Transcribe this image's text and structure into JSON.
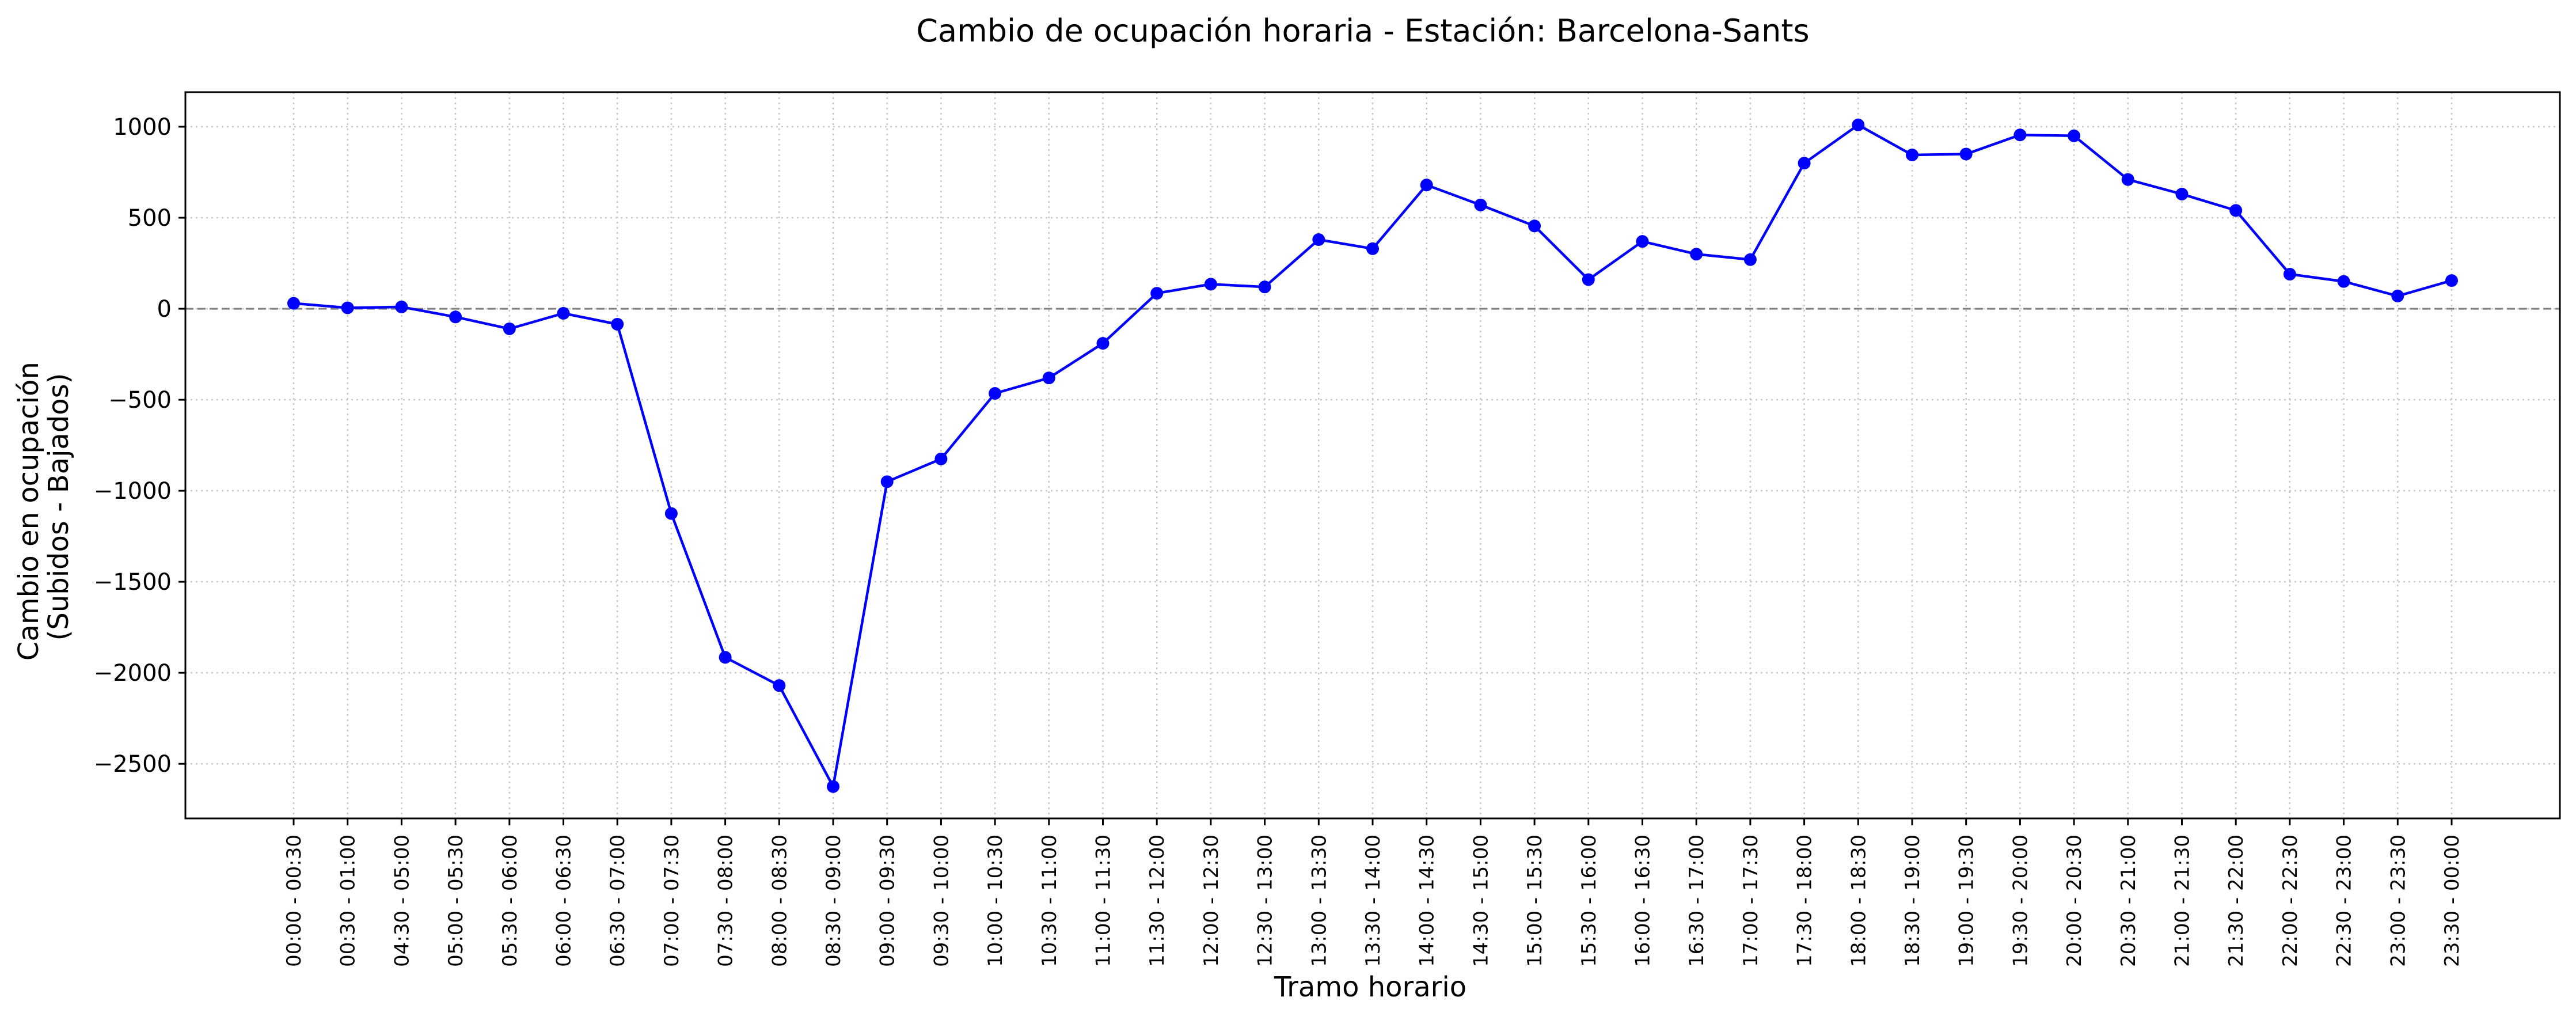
{
  "chart_data": {
    "type": "line",
    "title": "Cambio de ocupación horaria - Estación: Barcelona-Sants",
    "xlabel": "Tramo horario",
    "ylabel": [
      "Cambio en ocupación",
      "(Subidos - Bajados)"
    ],
    "categories": [
      "00:00 - 00:30",
      "00:30 - 01:00",
      "04:30 - 05:00",
      "05:00 - 05:30",
      "05:30 - 06:00",
      "06:00 - 06:30",
      "06:30 - 07:00",
      "07:00 - 07:30",
      "07:30 - 08:00",
      "08:00 - 08:30",
      "08:30 - 09:00",
      "09:00 - 09:30",
      "09:30 - 10:00",
      "10:00 - 10:30",
      "10:30 - 11:00",
      "11:00 - 11:30",
      "11:30 - 12:00",
      "12:00 - 12:30",
      "12:30 - 13:00",
      "13:00 - 13:30",
      "13:30 - 14:00",
      "14:00 - 14:30",
      "14:30 - 15:00",
      "15:00 - 15:30",
      "15:30 - 16:00",
      "16:00 - 16:30",
      "16:30 - 17:00",
      "17:00 - 17:30",
      "17:30 - 18:00",
      "18:00 - 18:30",
      "18:30 - 19:00",
      "19:00 - 19:30",
      "19:30 - 20:00",
      "20:00 - 20:30",
      "20:30 - 21:00",
      "21:00 - 21:30",
      "21:30 - 22:00",
      "22:00 - 22:30",
      "22:30 - 23:00",
      "23:00 - 23:30",
      "23:30 - 00:00"
    ],
    "series": [
      {
        "values": [
          30,
          5,
          10,
          -45,
          -110,
          -25,
          -85,
          -1125,
          -1915,
          -2070,
          -2625,
          -950,
          -825,
          -465,
          -380,
          -190,
          85,
          135,
          120,
          380,
          330,
          680,
          570,
          455,
          160,
          370,
          300,
          270,
          800,
          1010,
          845,
          850,
          955,
          950,
          710,
          630,
          540,
          190,
          150,
          70,
          155
        ],
        "color": "#0000ff"
      }
    ],
    "yticks": [
      1000,
      500,
      0,
      -500,
      -1000,
      -1500,
      -2000,
      -2500
    ],
    "ytick_labels": [
      "1000",
      "500",
      "0",
      "−500",
      "−1000",
      "−1500",
      "−2000",
      "−2500"
    ],
    "ylim": [
      -2800,
      1190
    ],
    "grid": true,
    "zero_line": {
      "value": 0,
      "style": "dashed",
      "color": "#808080"
    },
    "marker": "circle",
    "legend": "none"
  }
}
